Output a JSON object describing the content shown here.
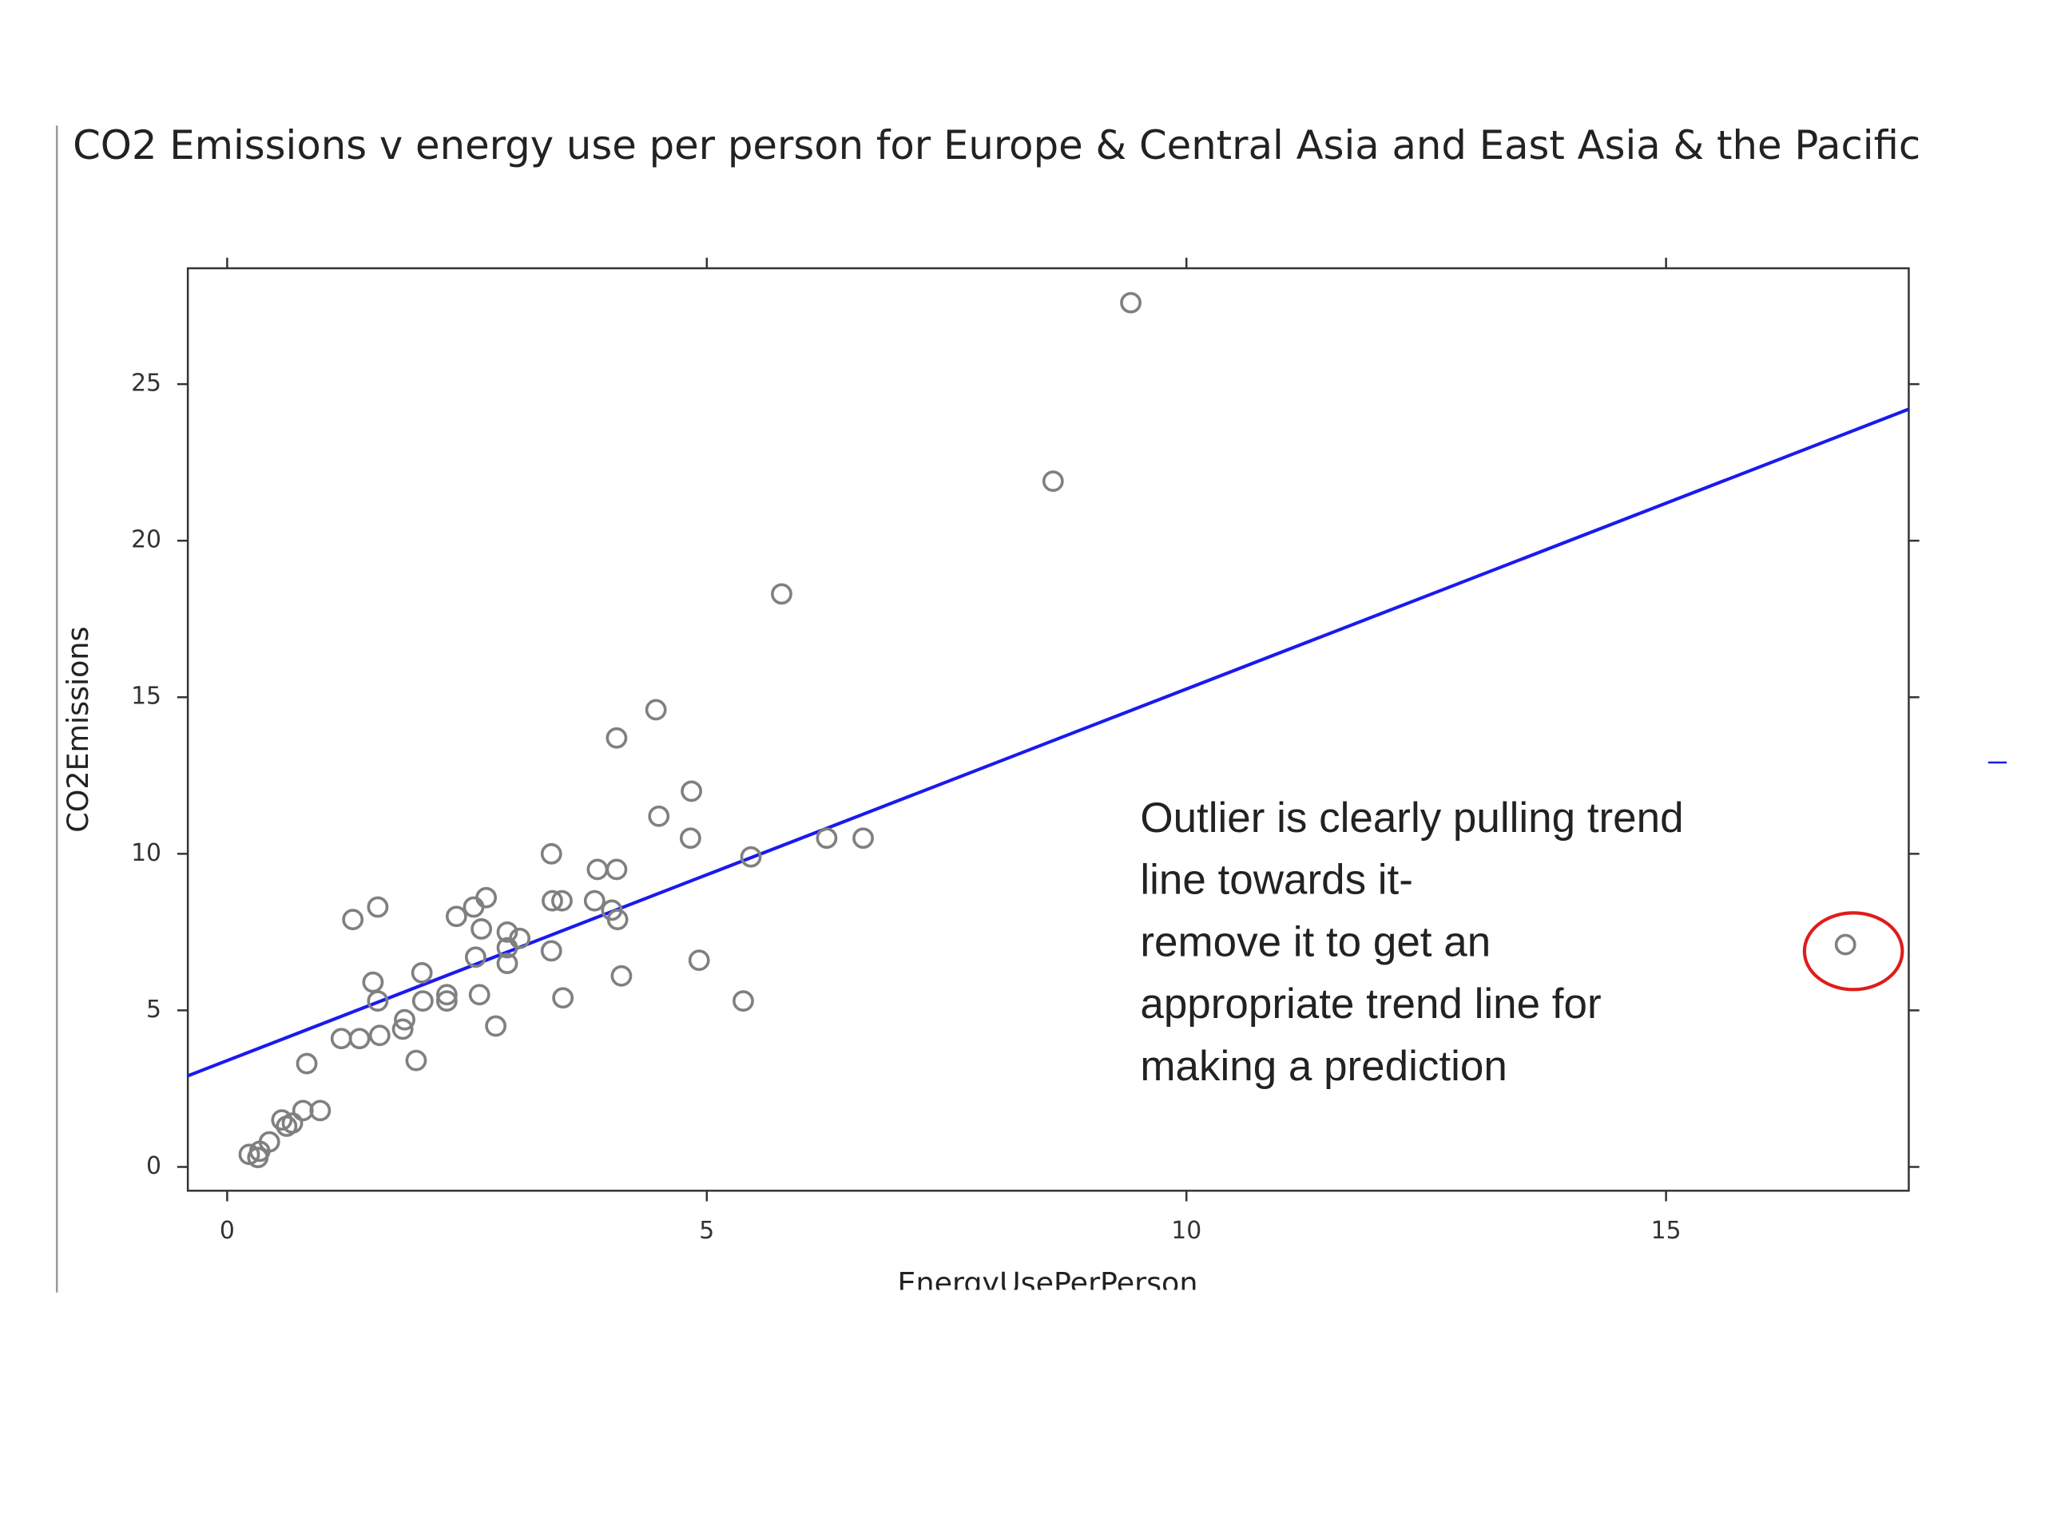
{
  "chart_data": {
    "type": "scatter",
    "title": "CO2 Emissions v energy use per person for Europe & Central Asia and East Asia & the Pacific",
    "x_label": "EnergyUsePerPerson",
    "y_label": "CO2Emissions",
    "xlim": [
      -0.41,
      17.53
    ],
    "ylim": [
      -0.76,
      28.7
    ],
    "xticks": [
      0,
      5,
      10,
      15
    ],
    "yticks": [
      0,
      5,
      10,
      15,
      20,
      25
    ],
    "points": {
      "color": "#808080",
      "x": [
        9.42,
        8.61,
        5.78,
        4.47,
        4.06,
        4.84,
        4.5,
        6.25,
        6.63,
        4.83,
        5.46,
        3.38,
        3.86,
        4.06,
        2.7,
        1.57,
        1.31,
        2.39,
        2.57,
        3.39,
        3.49,
        3.83,
        4.01,
        4.07,
        2.65,
        2.92,
        3.05,
        2.92,
        2.59,
        3.38,
        2.92,
        4.92,
        16.87,
        2.03,
        1.52,
        4.11,
        1.57,
        2.04,
        2.29,
        2.29,
        2.63,
        3.5,
        5.38,
        1.85,
        1.83,
        2.8,
        1.19,
        1.38,
        1.59,
        0.83,
        1.97,
        0.97,
        0.79,
        0.57,
        0.68,
        0.62,
        0.44,
        0.34,
        0.23,
        0.32
      ],
      "y": [
        27.6,
        21.9,
        18.3,
        14.6,
        13.7,
        12.0,
        11.2,
        10.5,
        10.5,
        10.5,
        9.9,
        10.0,
        9.5,
        9.5,
        8.6,
        8.3,
        7.9,
        8.0,
        8.3,
        8.5,
        8.5,
        8.5,
        8.2,
        7.9,
        7.6,
        7.5,
        7.3,
        7.0,
        6.7,
        6.9,
        6.5,
        6.6,
        7.1,
        6.2,
        5.9,
        6.1,
        5.3,
        5.3,
        5.5,
        5.3,
        5.5,
        5.4,
        5.3,
        4.7,
        4.4,
        4.5,
        4.1,
        4.1,
        4.2,
        3.3,
        3.4,
        1.8,
        1.8,
        1.5,
        1.4,
        1.3,
        0.8,
        0.5,
        0.4,
        0.3
      ]
    },
    "trend_line": {
      "color": "#1a1aee",
      "x": [
        -0.41,
        17.53
      ],
      "y": [
        2.91,
        24.2
      ]
    },
    "highlight_color": "#e01b1b",
    "annotation": [
      "Outlier is clearly pulling trend",
      "line towards it-",
      "remove it to get an",
      "appropriate trend line for",
      "making a prediction"
    ]
  }
}
